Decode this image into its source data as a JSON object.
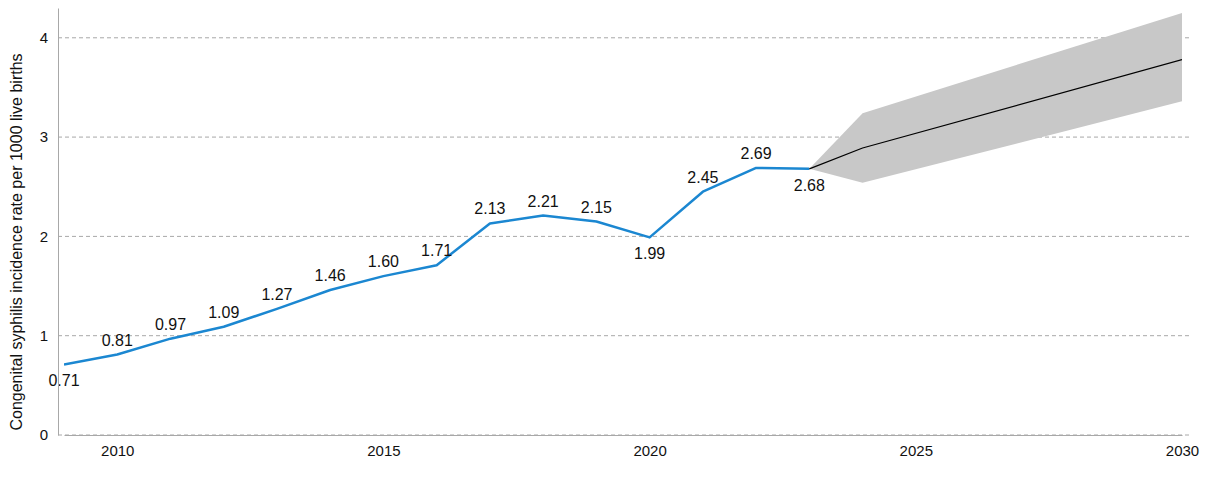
{
  "chart_data": {
    "type": "line",
    "y_label": "Congenital syphilis incidence rate per 1000 live births",
    "xlim": [
      2009,
      2030
    ],
    "xticks": [
      2010,
      2015,
      2020,
      2025,
      2030
    ],
    "ylim": [
      0,
      4.3
    ],
    "yticks": [
      0,
      1,
      2,
      3,
      4
    ],
    "grid": true,
    "series": [
      {
        "type": "line",
        "color": "#1b87d1",
        "line_style": "solid",
        "data_labels": true,
        "x": [
          2009,
          2010,
          2011,
          2012,
          2013,
          2014,
          2015,
          2016,
          2017,
          2018,
          2019,
          2020,
          2021,
          2022,
          2023
        ],
        "values": [
          0.71,
          0.81,
          0.97,
          1.09,
          1.27,
          1.46,
          1.6,
          1.71,
          2.13,
          2.21,
          2.15,
          1.99,
          2.45,
          2.69,
          2.68
        ],
        "value_labels": [
          "0.71",
          "0.81",
          "0.97",
          "1.09",
          "1.27",
          "1.46",
          "1.60",
          "1.71",
          "2.13",
          "2.21",
          "2.15",
          "1.99",
          "2.45",
          "2.69",
          "2.68"
        ]
      },
      {
        "type": "line",
        "color": "#000000",
        "line_style": "solid",
        "x": [
          2023,
          2024,
          2030
        ],
        "values": [
          2.68,
          2.89,
          3.78
        ]
      }
    ],
    "band": {
      "color": "#c8c8c8",
      "x": [
        2023,
        2024,
        2030
      ],
      "lower": [
        2.68,
        2.54,
        3.36
      ],
      "upper": [
        2.68,
        3.24,
        4.25
      ]
    }
  }
}
